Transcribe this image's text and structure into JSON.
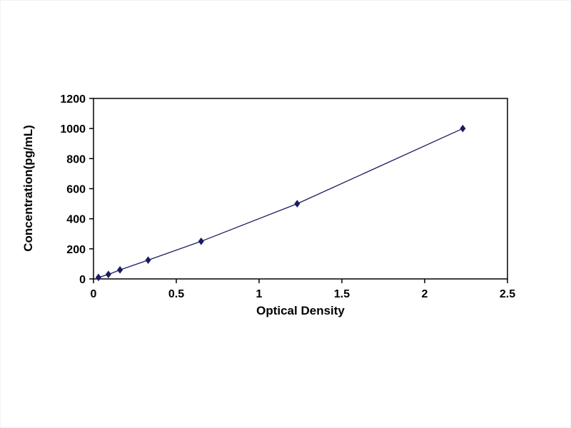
{
  "page": {
    "background_color": "#ffffff",
    "frame_color": "#000000"
  },
  "chart_data": {
    "type": "line",
    "title": "",
    "xlabel": "Optical Density",
    "ylabel": "Concentration(pg/mL)",
    "x": [
      0.03,
      0.09,
      0.16,
      0.33,
      0.65,
      1.23,
      2.23
    ],
    "y": [
      10,
      30,
      60,
      125,
      250,
      500,
      1000
    ],
    "xlim": [
      0,
      2.5
    ],
    "ylim": [
      0,
      1200
    ],
    "x_ticks": [
      0,
      0.5,
      1,
      1.5,
      2,
      2.5
    ],
    "x_tick_labels": [
      "0",
      "0.5",
      "1",
      "1.5",
      "2",
      "2.5"
    ],
    "y_ticks": [
      0,
      200,
      400,
      600,
      800,
      1000,
      1200
    ],
    "y_tick_labels": [
      "0",
      "200",
      "400",
      "600",
      "800",
      "1000",
      "1200"
    ],
    "line_color": "#1b1b60",
    "marker": "diamond",
    "grid": false,
    "legend_position": "none"
  }
}
